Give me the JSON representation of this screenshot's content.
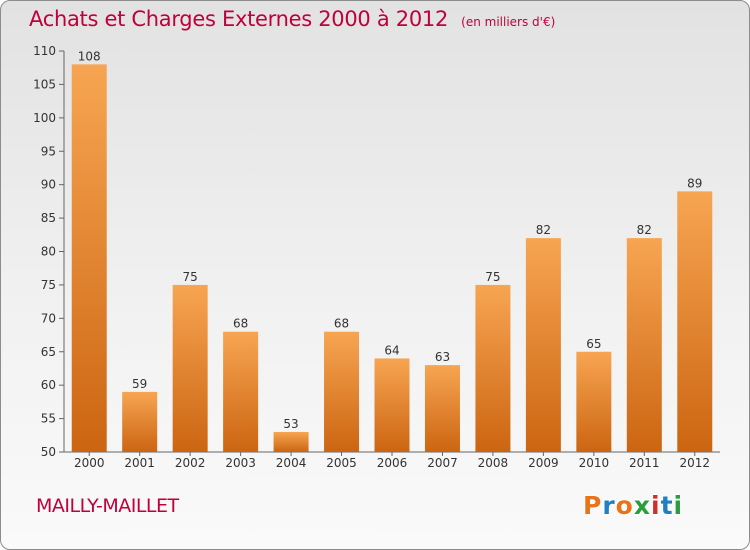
{
  "title": "Achats et Charges Externes 2000 à 2012",
  "subtitle": "(en milliers d'€)",
  "commune": "MAILLY-MAILLET",
  "logo": {
    "text": "Proxiti",
    "colors": [
      "#e8731a",
      "#1f7fc4",
      "#e8731a",
      "#2a9e3c",
      "#d42c2c",
      "#1f7fc4",
      "#2a9e3c"
    ]
  },
  "colors": {
    "bar_top": "#f7a552",
    "bar_bottom": "#cc6512",
    "accent": "#c0003a"
  },
  "chart_data": {
    "type": "bar",
    "title": "Achats et Charges Externes 2000 à 2012",
    "subtitle": "(en milliers d'€)",
    "categories": [
      "2000",
      "2001",
      "2002",
      "2003",
      "2004",
      "2005",
      "2006",
      "2007",
      "2008",
      "2009",
      "2010",
      "2011",
      "2012"
    ],
    "values": [
      108,
      59,
      75,
      68,
      53,
      68,
      64,
      63,
      75,
      82,
      65,
      82,
      89
    ],
    "ylim": [
      50,
      110
    ],
    "yticks": [
      50,
      55,
      60,
      65,
      70,
      75,
      80,
      85,
      90,
      95,
      100,
      105,
      110
    ],
    "grid": false,
    "xlabel": "",
    "ylabel": ""
  }
}
